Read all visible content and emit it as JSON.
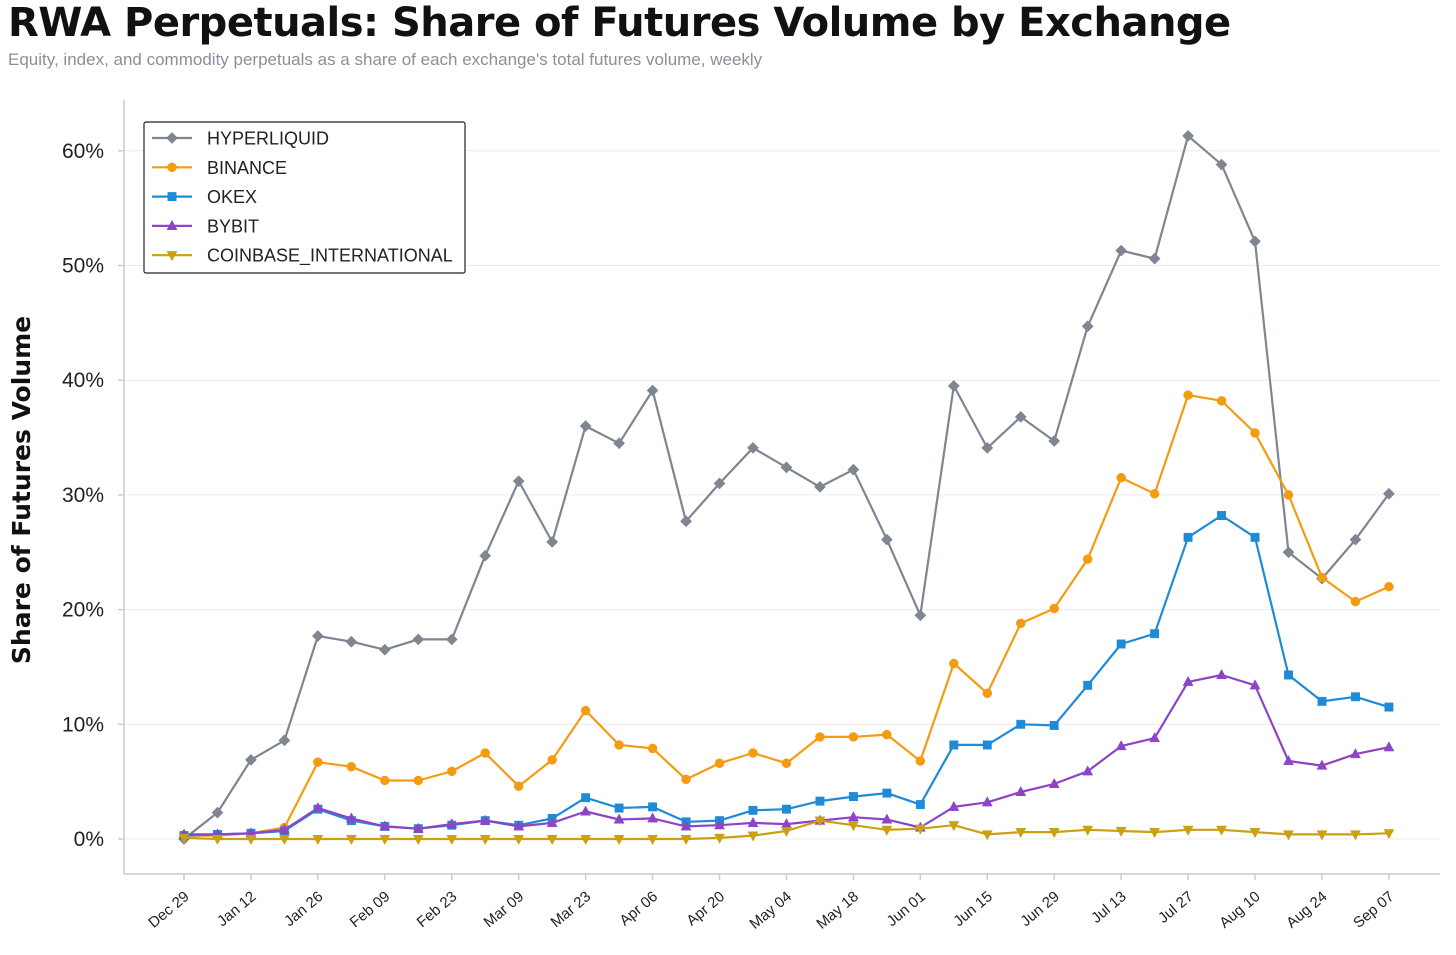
{
  "chart_data": {
    "type": "line",
    "title": "RWA Perpetuals: Share of Futures Volume by Exchange",
    "subtitle": "Equity, index, and commodity perpetuals as a share of each exchange's total futures volume, weekly",
    "xlabel": "",
    "ylabel": "Share of Futures Volume",
    "ylim": [
      0,
      0.62
    ],
    "yticks": [
      0,
      0.1,
      0.2,
      0.3,
      0.4,
      0.5,
      0.6
    ],
    "ytick_labels": [
      "0%",
      "10%",
      "20%",
      "30%",
      "40%",
      "50%",
      "60%"
    ],
    "x_tick_labels": [
      "Dec 29",
      "Jan 12",
      "Jan 26",
      "Feb 09",
      "Feb 23",
      "Mar 09",
      "Mar 23",
      "Apr 06",
      "Apr 20",
      "May 04",
      "May 18",
      "Jun 01",
      "Jun 15",
      "Jun 29",
      "Jul 13",
      "Jul 27",
      "Aug 10",
      "Aug 24",
      "Sep 07"
    ],
    "x": [
      "Dec 29",
      "Jan 05",
      "Jan 12",
      "Jan 19",
      "Jan 26",
      "Feb 02",
      "Feb 09",
      "Feb 16",
      "Feb 23",
      "Mar 02",
      "Mar 09",
      "Mar 16",
      "Mar 23",
      "Mar 30",
      "Apr 06",
      "Apr 13",
      "Apr 20",
      "Apr 27",
      "May 04",
      "May 11",
      "May 18",
      "May 25",
      "Jun 01",
      "Jun 08",
      "Jun 15",
      "Jun 22",
      "Jun 29",
      "Jul 06",
      "Jul 13",
      "Jul 20",
      "Jul 27",
      "Aug 03",
      "Aug 10",
      "Aug 17",
      "Aug 24",
      "Aug 31",
      "Sep 07"
    ],
    "grid": true,
    "legend_position": "top-left",
    "series": [
      {
        "name": "HYPERLIQUID",
        "color": "#7f8591",
        "marker": "diamond",
        "values": [
          0.0,
          0.023,
          0.069,
          0.086,
          0.177,
          0.172,
          0.165,
          0.174,
          0.174,
          0.247,
          0.312,
          0.259,
          0.36,
          0.345,
          0.391,
          0.277,
          0.31,
          0.341,
          0.324,
          0.307,
          0.322,
          0.261,
          0.195,
          0.395,
          0.341,
          0.368,
          0.347,
          0.447,
          0.513,
          0.506,
          0.613,
          0.588,
          0.521,
          0.25,
          0.227,
          0.261,
          0.301
        ]
      },
      {
        "name": "BINANCE",
        "color": "#f39c12",
        "marker": "circle",
        "values": [
          0.003,
          0.003,
          0.005,
          0.01,
          0.067,
          0.063,
          0.051,
          0.051,
          0.059,
          0.075,
          0.046,
          0.069,
          0.112,
          0.082,
          0.079,
          0.052,
          0.066,
          0.075,
          0.066,
          0.089,
          0.089,
          0.091,
          0.068,
          0.153,
          0.127,
          0.188,
          0.201,
          0.244,
          0.315,
          0.301,
          0.387,
          0.382,
          0.354,
          0.3,
          0.228,
          0.207,
          0.22
        ]
      },
      {
        "name": "OKEX",
        "color": "#1f8ad6",
        "marker": "square",
        "values": [
          0.003,
          0.004,
          0.005,
          0.007,
          0.026,
          0.016,
          0.011,
          0.009,
          0.012,
          0.016,
          0.012,
          0.018,
          0.036,
          0.027,
          0.028,
          0.015,
          0.016,
          0.025,
          0.026,
          0.033,
          0.037,
          0.04,
          0.03,
          0.082,
          0.082,
          0.1,
          0.099,
          0.134,
          0.17,
          0.179,
          0.263,
          0.282,
          0.263,
          0.143,
          0.12,
          0.124,
          0.115
        ]
      },
      {
        "name": "BYBIT",
        "color": "#8e44c7",
        "marker": "triangle-up",
        "values": [
          0.004,
          0.004,
          0.005,
          0.008,
          0.027,
          0.018,
          0.011,
          0.009,
          0.013,
          0.016,
          0.011,
          0.014,
          0.024,
          0.017,
          0.018,
          0.011,
          0.012,
          0.014,
          0.013,
          0.016,
          0.019,
          0.017,
          0.01,
          0.028,
          0.032,
          0.041,
          0.048,
          0.059,
          0.081,
          0.088,
          0.137,
          0.143,
          0.134,
          0.068,
          0.064,
          0.074,
          0.08
        ]
      },
      {
        "name": "COINBASE_INTERNATIONAL",
        "color": "#c9a112",
        "marker": "triangle-down",
        "values": [
          0.001,
          0.0,
          0.0,
          0.0,
          0.0,
          0.0,
          0.0,
          0.0,
          0.0,
          0.0,
          0.0,
          0.0,
          0.0,
          0.0,
          0.0,
          0.0,
          0.001,
          0.003,
          0.007,
          0.016,
          0.012,
          0.008,
          0.009,
          0.012,
          0.004,
          0.006,
          0.006,
          0.008,
          0.007,
          0.006,
          0.008,
          0.008,
          0.006,
          0.004,
          0.004,
          0.004,
          0.005
        ]
      }
    ]
  }
}
